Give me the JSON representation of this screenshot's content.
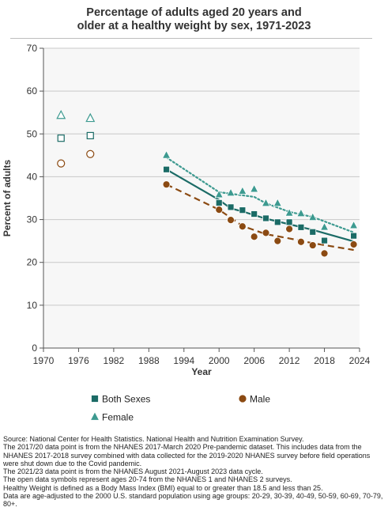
{
  "title_lines": [
    "Percentage of adults aged 20 years and",
    "older at a healthy weight by sex, 1971-2023"
  ],
  "chart_data": {
    "type": "scatter",
    "title": "Percentage of adults aged 20 years and older at a healthy weight by sex, 1971-2023",
    "xlabel": "Year",
    "ylabel": "Percent of adults",
    "xlim": [
      1970,
      2024
    ],
    "ylim": [
      0,
      70
    ],
    "x_ticks": [
      1970,
      1976,
      1982,
      1988,
      1994,
      2000,
      2006,
      2012,
      2018,
      2024
    ],
    "y_ticks": [
      0,
      10,
      20,
      30,
      40,
      50,
      60,
      70
    ],
    "grid": "horizontal",
    "legend_position": "bottom",
    "series": [
      {
        "name": "Both Sexes",
        "color": "#1b6b66",
        "marker": "square",
        "open_points": [
          {
            "x": 1973,
            "y": 49.0
          },
          {
            "x": 1978,
            "y": 49.6
          }
        ],
        "points": [
          {
            "x": 1991,
            "y": 41.7
          },
          {
            "x": 2000,
            "y": 33.9
          },
          {
            "x": 2002,
            "y": 32.9
          },
          {
            "x": 2004,
            "y": 32.2
          },
          {
            "x": 2006,
            "y": 31.3
          },
          {
            "x": 2008,
            "y": 30.3
          },
          {
            "x": 2010,
            "y": 29.4
          },
          {
            "x": 2012,
            "y": 29.4
          },
          {
            "x": 2014,
            "y": 28.2
          },
          {
            "x": 2016,
            "y": 27.1
          },
          {
            "x": 2018,
            "y": 25.1
          },
          {
            "x": 2023,
            "y": 26.2
          }
        ],
        "trend": [
          {
            "x": 1991,
            "y": 41.7
          },
          {
            "x": 2000,
            "y": 34.6
          },
          {
            "x": 2002,
            "y": 32.6
          },
          {
            "x": 2004,
            "y": 31.9
          },
          {
            "x": 2008,
            "y": 30.2
          },
          {
            "x": 2012,
            "y": 28.9
          },
          {
            "x": 2016,
            "y": 27.6
          },
          {
            "x": 2023,
            "y": 24.9
          }
        ],
        "trend_style": "solid"
      },
      {
        "name": "Male",
        "color": "#8b4a12",
        "marker": "circle",
        "open_points": [
          {
            "x": 1973,
            "y": 43.1
          },
          {
            "x": 1978,
            "y": 45.3
          }
        ],
        "points": [
          {
            "x": 1991,
            "y": 38.2
          },
          {
            "x": 2000,
            "y": 32.3
          },
          {
            "x": 2002,
            "y": 29.9
          },
          {
            "x": 2004,
            "y": 28.4
          },
          {
            "x": 2006,
            "y": 26.0
          },
          {
            "x": 2008,
            "y": 26.9
          },
          {
            "x": 2010,
            "y": 25.0
          },
          {
            "x": 2012,
            "y": 27.8
          },
          {
            "x": 2014,
            "y": 24.8
          },
          {
            "x": 2016,
            "y": 24.0
          },
          {
            "x": 2018,
            "y": 22.1
          },
          {
            "x": 2023,
            "y": 24.2
          }
        ],
        "trend": [
          {
            "x": 1991,
            "y": 38.2
          },
          {
            "x": 2000,
            "y": 32.3
          },
          {
            "x": 2004,
            "y": 28.5
          },
          {
            "x": 2008,
            "y": 26.6
          },
          {
            "x": 2012,
            "y": 25.6
          },
          {
            "x": 2016,
            "y": 24.5
          },
          {
            "x": 2023,
            "y": 22.9
          }
        ],
        "trend_style": "dashed"
      },
      {
        "name": "Female",
        "color": "#3d9a90",
        "marker": "triangle",
        "open_points": [
          {
            "x": 1973,
            "y": 54.3
          },
          {
            "x": 1978,
            "y": 53.6
          }
        ],
        "points": [
          {
            "x": 1991,
            "y": 45.0
          },
          {
            "x": 2000,
            "y": 35.8
          },
          {
            "x": 2002,
            "y": 36.2
          },
          {
            "x": 2004,
            "y": 36.6
          },
          {
            "x": 2006,
            "y": 37.1
          },
          {
            "x": 2008,
            "y": 33.8
          },
          {
            "x": 2010,
            "y": 33.8
          },
          {
            "x": 2012,
            "y": 31.5
          },
          {
            "x": 2014,
            "y": 31.4
          },
          {
            "x": 2016,
            "y": 30.5
          },
          {
            "x": 2018,
            "y": 28.2
          },
          {
            "x": 2023,
            "y": 28.6
          }
        ],
        "trend": [
          {
            "x": 1991,
            "y": 44.5
          },
          {
            "x": 2000,
            "y": 36.4
          },
          {
            "x": 2006,
            "y": 35.3
          },
          {
            "x": 2008,
            "y": 33.8
          },
          {
            "x": 2012,
            "y": 31.8
          },
          {
            "x": 2016,
            "y": 30.6
          },
          {
            "x": 2023,
            "y": 27.0
          }
        ],
        "trend_style": "dotted"
      }
    ]
  },
  "source_lines": [
    "Source: National Center for Health Statistics. National Health and Nutrition Examination Survey.",
    "The 2017/20 data point is from the NHANES 2017-March 2020 Pre-pandemic dataset. This includes data from the NHANES 2017-2018 survey combined with data collected for the 2019-2020 NHANES survey before field operations were shut down due to the Covid pandemic.",
    "The 2021/23 data point is from the NHANES August 2021-August 2023 data cycle.",
    "The open data symbols represent ages 20-74 from the NHANES 1 and NHANES 2 surveys.",
    "Healthy Weight is defined as a Body Mass Index (BMI) equal to or greater than 18.5 and less than 25.",
    "Data are age-adjusted to the 2000 U.S. standard population using age groups: 20-29, 30-39, 40-49, 50-59, 60-69, 70-79, 80+."
  ]
}
